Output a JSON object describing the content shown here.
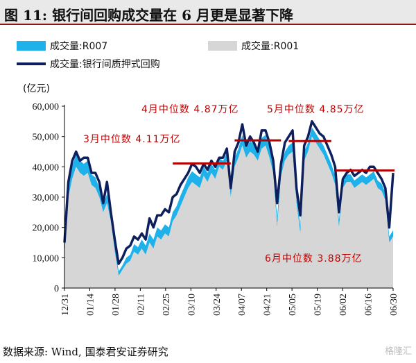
{
  "title": "图 11: 银行间回购成交量在 6 月更是显著下降",
  "source": "数据来源: Wind, 国泰君安证券研究",
  "watermark": "格隆汇",
  "chart_data": {
    "type": "area",
    "unit_label": "(亿元)",
    "ylim": [
      0,
      60000
    ],
    "y_ticks": [
      0,
      10000,
      20000,
      30000,
      40000,
      50000,
      60000
    ],
    "y_tick_labels": [
      "0",
      "10,000",
      "20,000",
      "30,000",
      "40,000",
      "50,000",
      "60,000"
    ],
    "x_tick_labels": [
      "12/31",
      "01/14",
      "01/28",
      "02/11",
      "02/25",
      "03/10",
      "03/24",
      "04/07",
      "04/21",
      "05/05",
      "05/19",
      "06/02",
      "06/16",
      "06/30"
    ],
    "legend": [
      {
        "label": "成交量:R007",
        "color": "#1fb2ea",
        "kind": "area"
      },
      {
        "label": "成交量:R001",
        "color": "#d6d6d6",
        "kind": "area"
      },
      {
        "label": "成交量:银行间质押式回购",
        "color": "#0d1f5c",
        "kind": "line"
      }
    ],
    "series": [
      {
        "name": "成交量:R001",
        "values": [
          10000,
          30000,
          36000,
          40000,
          38000,
          37000,
          38000,
          34000,
          33000,
          30000,
          25000,
          28000,
          22000,
          12000,
          4000,
          6000,
          8000,
          9000,
          12000,
          11000,
          13000,
          11000,
          15000,
          13000,
          17000,
          16000,
          18000,
          17000,
          22000,
          24000,
          27000,
          30000,
          33000,
          35000,
          34000,
          33000,
          37000,
          35000,
          38000,
          36000,
          40000,
          39000,
          42000,
          30000,
          40000,
          43000,
          47000,
          43000,
          45000,
          44000,
          42000,
          46000,
          47000,
          43000,
          38000,
          20000,
          37000,
          42000,
          44000,
          45000,
          28000,
          18000,
          42000,
          45000,
          50000,
          48000,
          46000,
          44000,
          41000,
          38000,
          34000,
          20000,
          33000,
          35000,
          35000,
          33000,
          34000,
          35000,
          34000,
          35000,
          36000,
          33000,
          32000,
          29000,
          15000,
          17000
        ]
      },
      {
        "name": "成交量:R007",
        "values": [
          3000,
          4500,
          4000,
          4500,
          4000,
          4000,
          4000,
          3500,
          3500,
          3000,
          2500,
          3000,
          2500,
          2000,
          1500,
          1500,
          2000,
          2000,
          2500,
          2500,
          3000,
          3000,
          3000,
          3000,
          3000,
          3000,
          3000,
          3000,
          3000,
          3000,
          3500,
          3500,
          3500,
          3500,
          3500,
          3500,
          3000,
          3000,
          3000,
          3000,
          3000,
          3000,
          2500,
          2500,
          3000,
          3000,
          3500,
          3500,
          3500,
          3500,
          3500,
          3500,
          3500,
          3500,
          3000,
          3000,
          3000,
          3000,
          3000,
          3000,
          3000,
          2500,
          3000,
          3000,
          3000,
          3000,
          3000,
          3000,
          3000,
          3000,
          3000,
          2500,
          2500,
          2500,
          2500,
          2500,
          2500,
          2500,
          2500,
          2500,
          2500,
          2500,
          2500,
          2500,
          2000,
          2000
        ]
      },
      {
        "name": "成交量:银行间质押式回购",
        "values": [
          15000,
          35000,
          42000,
          45000,
          42000,
          43000,
          43000,
          38000,
          38000,
          35000,
          28000,
          35000,
          25000,
          16000,
          8000,
          10000,
          13000,
          14000,
          17000,
          16000,
          18000,
          16000,
          23000,
          20000,
          24000,
          24000,
          26000,
          25000,
          30000,
          31000,
          34000,
          36000,
          38000,
          41000,
          40000,
          38000,
          41000,
          39000,
          42000,
          40000,
          43000,
          43000,
          46000,
          33000,
          45000,
          48000,
          54000,
          47000,
          50000,
          48000,
          45000,
          52000,
          52000,
          48000,
          42000,
          28000,
          41000,
          48000,
          50000,
          52000,
          33000,
          24000,
          47000,
          50000,
          55000,
          53000,
          51000,
          50000,
          47000,
          44000,
          40000,
          25000,
          36000,
          38000,
          39000,
          37000,
          38000,
          39000,
          38000,
          40000,
          40000,
          38000,
          36000,
          33000,
          20000,
          38000
        ]
      }
    ],
    "medians": [
      {
        "label": "3月中位数 4.11万亿",
        "value": 41100
      },
      {
        "label": "4月中位数 4.87万亿",
        "value": 48700
      },
      {
        "label": "5月中位数 4.85万亿",
        "value": 48500
      },
      {
        "label": "6月中位数 3.88万亿",
        "value": 38800
      }
    ]
  }
}
